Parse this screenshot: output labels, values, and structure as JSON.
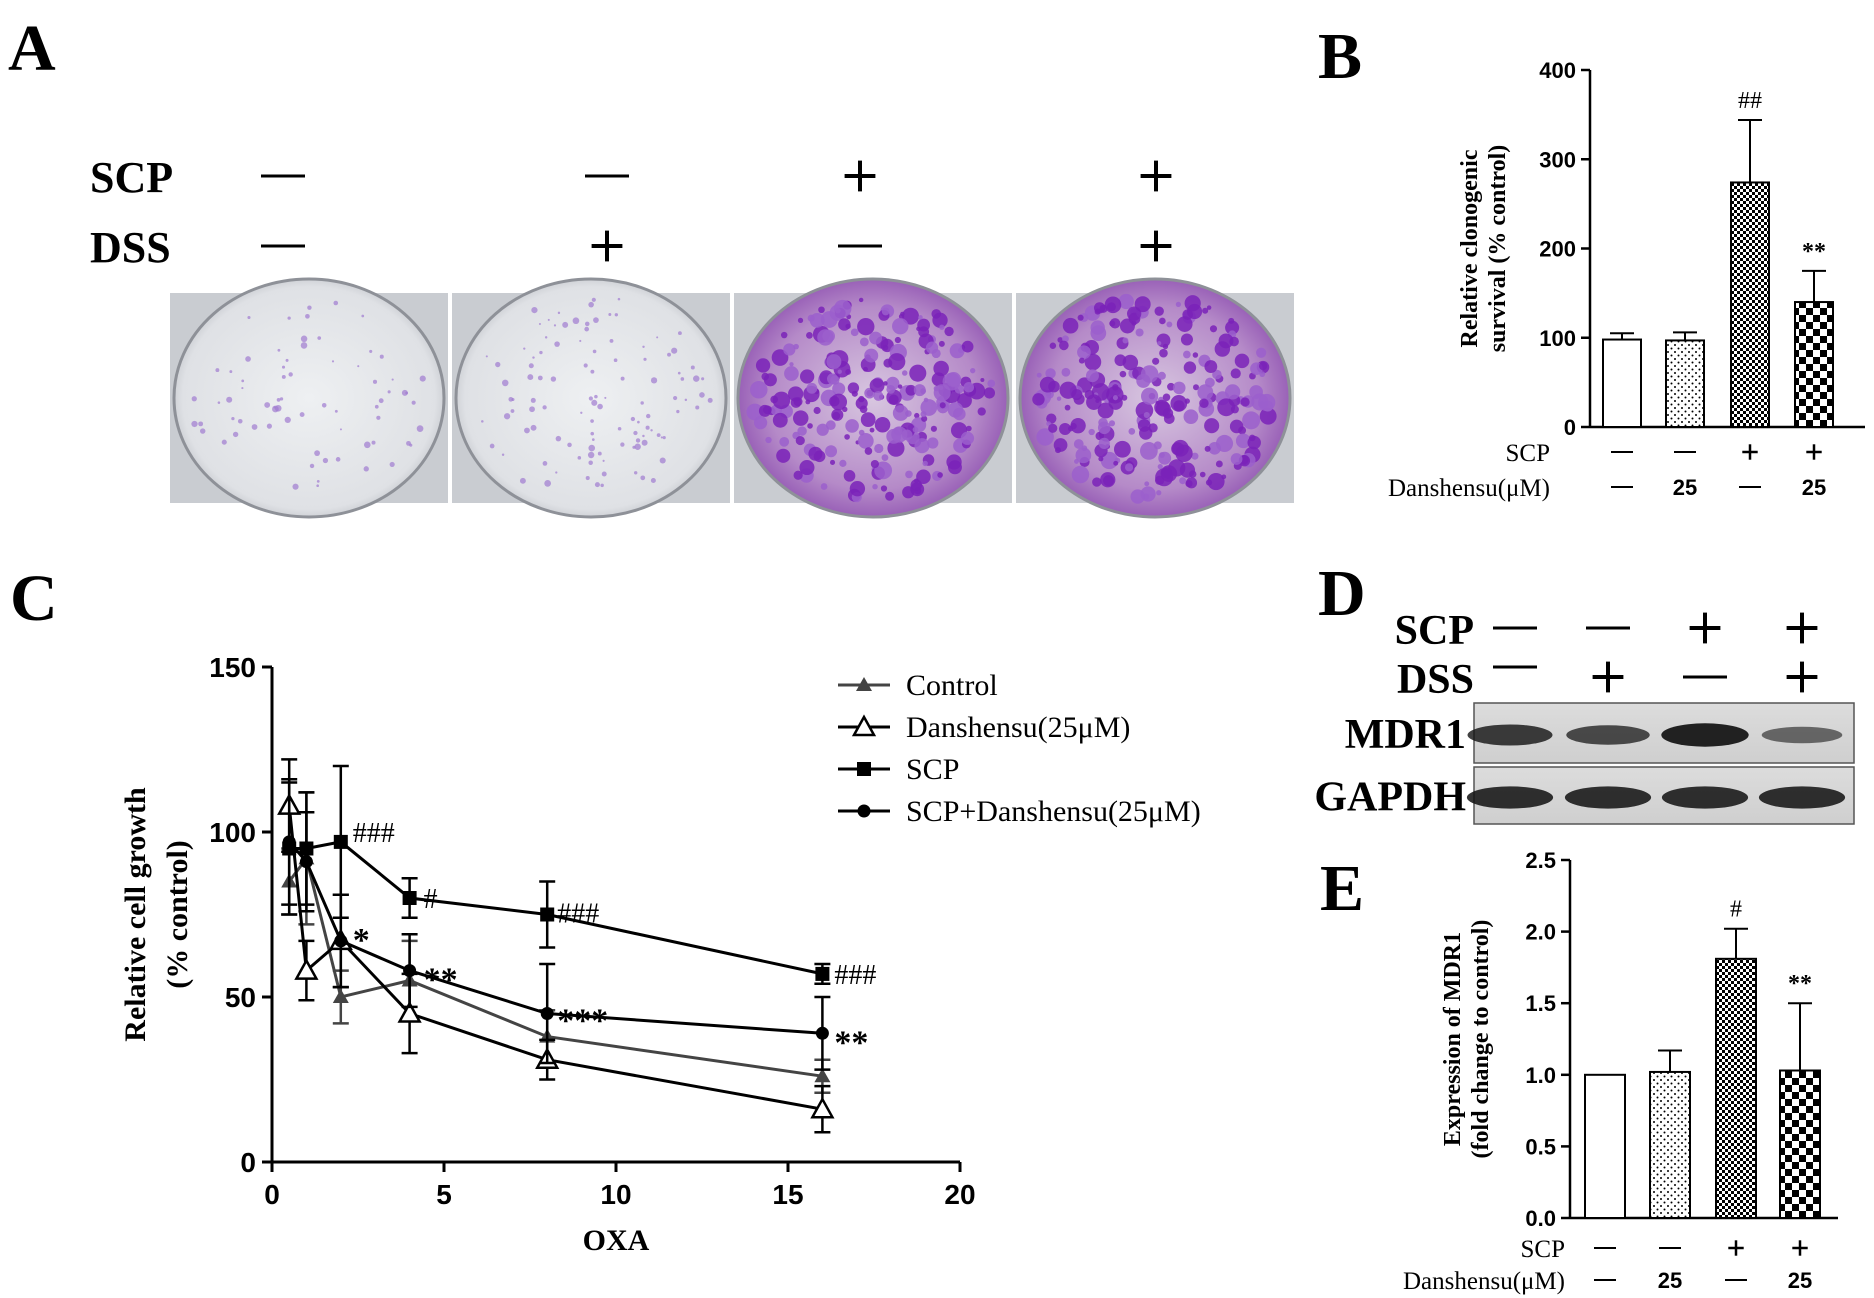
{
  "panels": {
    "A": {
      "label": "A",
      "rows": [
        {
          "name": "SCP",
          "values": [
            "—",
            "—",
            "+",
            "+"
          ]
        },
        {
          "name": "DSS",
          "values": [
            "—",
            "+",
            "—",
            "+"
          ]
        }
      ]
    },
    "B": {
      "label": "B"
    },
    "C": {
      "label": "C"
    },
    "D": {
      "label": "D",
      "rows": [
        {
          "name": "SCP",
          "values": [
            "—",
            "—",
            "+",
            "+"
          ]
        },
        {
          "name": "DSS",
          "values": [
            "—",
            "+",
            "—",
            "+"
          ]
        }
      ],
      "bands": [
        "MDR1",
        "GAPDH"
      ],
      "mdr1_intensity": [
        0.75,
        0.62,
        0.95,
        0.38
      ],
      "gapdh_intensity": [
        0.85,
        0.85,
        0.85,
        0.85
      ]
    },
    "E": {
      "label": "E"
    }
  },
  "chart_data": [
    {
      "panel": "B",
      "type": "bar",
      "ylabel_lines": [
        "Relative clonogenic",
        "survival (% control)"
      ],
      "ylim": [
        0,
        400
      ],
      "yticks": [
        "0",
        "100",
        "200",
        "300",
        "400"
      ],
      "values": [
        98,
        97,
        274,
        140
      ],
      "errors": [
        7,
        9,
        70,
        35
      ],
      "annotations": [
        "",
        "",
        "##",
        "**"
      ],
      "patterns": [
        "none",
        "dots",
        "checker",
        "checker-large"
      ],
      "condition_rows": [
        {
          "name": "SCP",
          "values": [
            "—",
            "—",
            "+",
            "+"
          ]
        },
        {
          "name": "Danshensu(μM)",
          "values": [
            "—",
            "25",
            "—",
            "25"
          ]
        }
      ]
    },
    {
      "panel": "C",
      "type": "line",
      "xlabel": "OXA",
      "ylabel_lines": [
        "Relative cell growth",
        "(% control)"
      ],
      "xlim": [
        0,
        20
      ],
      "ylim": [
        0,
        150
      ],
      "xticks": [
        "0",
        "5",
        "10",
        "15",
        "20"
      ],
      "yticks": [
        "0",
        "50",
        "100",
        "150"
      ],
      "x": [
        0.5,
        1,
        2,
        4,
        8,
        16
      ],
      "series": [
        {
          "name": "Control",
          "marker": "triangle-filled",
          "color": "#444444",
          "values": [
            85,
            92,
            50,
            55,
            38,
            26
          ],
          "errors": [
            10,
            20,
            8,
            12,
            8,
            5
          ],
          "annotations": [
            "",
            "",
            "",
            "",
            "",
            ""
          ]
        },
        {
          "name": "Danshensu(25μM)",
          "marker": "triangle-open",
          "color": "#000000",
          "values": [
            108,
            58,
            67,
            45,
            31,
            16
          ],
          "errors": [
            14,
            9,
            14,
            12,
            6,
            7
          ],
          "annotations": [
            "",
            "",
            "",
            "",
            "",
            ""
          ]
        },
        {
          "name": "SCP",
          "marker": "square",
          "color": "#000000",
          "values": [
            95,
            95,
            97,
            80,
            75,
            57
          ],
          "errors": [
            20,
            17,
            23,
            6,
            10,
            3
          ],
          "annotations": [
            "",
            "",
            "###",
            "#",
            "###",
            "###"
          ]
        },
        {
          "name": "SCP+Danshensu(25μM)",
          "marker": "circle",
          "color": "#000000",
          "values": [
            97,
            91,
            67,
            58,
            45,
            39
          ],
          "errors": [
            19,
            15,
            14,
            11,
            15,
            11
          ],
          "annotations": [
            "",
            "",
            "*",
            "**",
            "***",
            "**"
          ]
        }
      ]
    },
    {
      "panel": "E",
      "type": "bar",
      "ylabel_lines": [
        "Expression of MDR1",
        "(fold change to control)"
      ],
      "ylim": [
        0,
        2.5
      ],
      "yticks": [
        "0.0",
        "0.5",
        "1.0",
        "1.5",
        "2.0",
        "2.5"
      ],
      "values": [
        1.0,
        1.02,
        1.81,
        1.03
      ],
      "errors": [
        0,
        0.15,
        0.21,
        0.47
      ],
      "annotations": [
        "",
        "",
        "#",
        "**"
      ],
      "patterns": [
        "none",
        "dots",
        "checker",
        "checker-large"
      ],
      "condition_rows": [
        {
          "name": "SCP",
          "values": [
            "—",
            "—",
            "+",
            "+"
          ]
        },
        {
          "name": "Danshensu(μM)",
          "values": [
            "—",
            "25",
            "—",
            "25"
          ]
        }
      ]
    }
  ]
}
